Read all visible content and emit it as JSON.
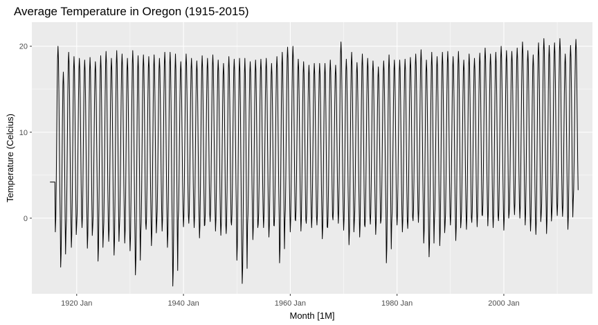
{
  "chart_data": {
    "type": "line",
    "title": "Average Temperature in Oregon (1915-2015)",
    "xlabel": "Month [1M]",
    "ylabel": "Temperature (Celcius)",
    "x_tick_labels": [
      "1920 Jan",
      "1940 Jan",
      "1960 Jan",
      "1980 Jan",
      "2000 Jan"
    ],
    "x_tick_years": [
      1920,
      1940,
      1960,
      1980,
      2000
    ],
    "y_ticks": [
      0,
      10,
      20
    ],
    "xlim": [
      1911.6,
      2016.6
    ],
    "ylim": [
      -8.8,
      22.8
    ],
    "grid": true,
    "panel_background": "#ebebeb",
    "grid_color": "#ffffff",
    "line_color": "#000000",
    "series": [
      {
        "frequency": "monthly",
        "start": "1915 Jan",
        "end": "2013 Dec",
        "annual_max": [
          4.2,
          20.0,
          17.0,
          19.3,
          18.8,
          18.6,
          18.4,
          18.7,
          18.2,
          18.9,
          19.4,
          18.6,
          19.5,
          19.1,
          18.6,
          19.5,
          18.9,
          19.0,
          18.8,
          19.0,
          18.6,
          19.3,
          19.3,
          19.1,
          18.2,
          19.1,
          18.6,
          18.3,
          18.9,
          18.6,
          19.0,
          18.4,
          18.0,
          18.8,
          18.5,
          18.6,
          18.6,
          18.2,
          18.4,
          18.5,
          18.6,
          18.0,
          18.8,
          19.3,
          19.9,
          20.0,
          18.5,
          18.2,
          17.8,
          18.0,
          18.0,
          18.0,
          18.4,
          17.8,
          20.5,
          18.5,
          19.3,
          18.1,
          19.1,
          18.6,
          18.3,
          17.6,
          18.3,
          19.0,
          18.4,
          18.4,
          18.5,
          18.7,
          19.1,
          19.6,
          18.4,
          19.3,
          18.8,
          19.3,
          19.4,
          18.8,
          19.4,
          18.4,
          19.1,
          18.6,
          19.2,
          19.8,
          19.1,
          19.3,
          20.0,
          19.5,
          19.4,
          19.8,
          20.5,
          19.5,
          19.0,
          20.4,
          20.9,
          20.1,
          20.4,
          20.9,
          19.1,
          20.1,
          20.8
        ],
        "annual_min": [
          4.2,
          -1.6,
          -5.7,
          -1.5,
          -3.4,
          -0.8,
          -1.1,
          -3.5,
          -1.1,
          -5.0,
          -1.9,
          -2.7,
          -4.3,
          -1.1,
          -2.9,
          -3.8,
          -6.6,
          -1.9,
          -1.3,
          -3.2,
          -0.5,
          -1.5,
          -3.4,
          -7.9,
          -0.3,
          -1.0,
          -0.6,
          -1.1,
          -2.3,
          -0.8,
          -0.4,
          -1.5,
          -2.0,
          -1.8,
          -0.8,
          -4.9,
          -7.6,
          -0.8,
          -2.5,
          -0.7,
          -1.1,
          -2.2,
          -0.9,
          -5.2,
          -0.4,
          -1.6,
          -0.3,
          -1.5,
          -0.6,
          -1.1,
          -0.8,
          -2.4,
          -1.1,
          -0.2,
          -0.6,
          -1.4,
          -3.1,
          -0.5,
          -2.2,
          -1.0,
          -0.7,
          -1.9,
          -0.3,
          -5.2,
          -0.6,
          -0.8,
          -1.6,
          -1.2,
          -0.3,
          -0.5,
          -2.9,
          -4.5,
          -0.3,
          -3.2,
          -0.8,
          -0.8,
          -2.6,
          -0.4,
          -1.3,
          -0.5,
          -1.0,
          0.3,
          -0.9,
          -1.1,
          -0.3,
          -1.4,
          0.5,
          0.4,
          0.0,
          -0.8,
          -1.5,
          -1.9,
          0.3,
          -1.8,
          0.5,
          0.3,
          0.2,
          -1.3,
          2.0
        ]
      }
    ]
  }
}
